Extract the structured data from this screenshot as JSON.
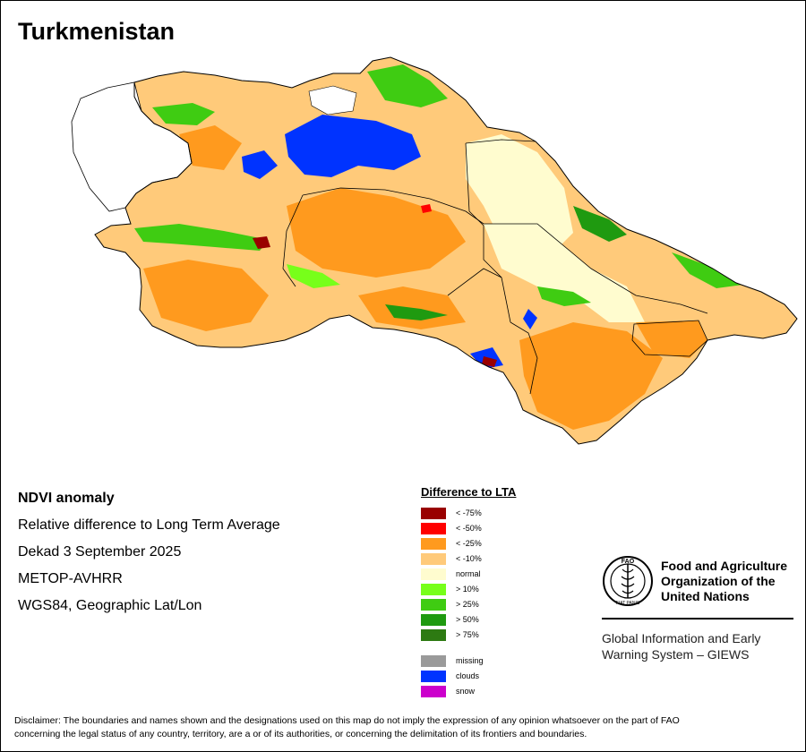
{
  "title": "Turkmenistan",
  "info": {
    "heading": "NDVI anomaly",
    "line1": "Relative difference to Long Term Average",
    "line2": "Dekad 3 September 2025",
    "line3": "METOP-AVHRR",
    "line4": "WGS84, Geographic Lat/Lon"
  },
  "legend": {
    "title": "Difference to LTA",
    "classes": [
      {
        "label": "< -75%",
        "color": "#990000"
      },
      {
        "label": "< -50%",
        "color": "#ff0000"
      },
      {
        "label": "< -25%",
        "color": "#ff9a1e"
      },
      {
        "label": "< -10%",
        "color": "#ffca7a"
      },
      {
        "label": "normal",
        "color": "#fffccf"
      },
      {
        "label": "> 10%",
        "color": "#77ff1a"
      },
      {
        "label": "> 25%",
        "color": "#3fcc12"
      },
      {
        "label": "> 50%",
        "color": "#1f9a10"
      },
      {
        "label": "> 75%",
        "color": "#2d7a12"
      }
    ],
    "extra": [
      {
        "label": "missing",
        "color": "#9a9a9a"
      },
      {
        "label": "clouds",
        "color": "#0033ff"
      },
      {
        "label": "snow",
        "color": "#cc00cc"
      }
    ]
  },
  "org": {
    "name_line1": "Food and Agriculture",
    "name_line2": "Organization of the",
    "name_line3": "United Nations",
    "logo_letters": "FAO",
    "logo_motto": "FIAT PANIS",
    "giews_line1": "Global Information and Early",
    "giews_line2": "Warning System – GIEWS"
  },
  "disclaimer_line1": "Disclaimer: The boundaries and names shown and the designations used on this map do not imply the expression of any opinion whatsoever on the part of FAO",
  "disclaimer_line2": "concerning the legal status of any country, territory, are a or of its authorities, or concerning the delimitation of its frontiers and boundaries."
}
